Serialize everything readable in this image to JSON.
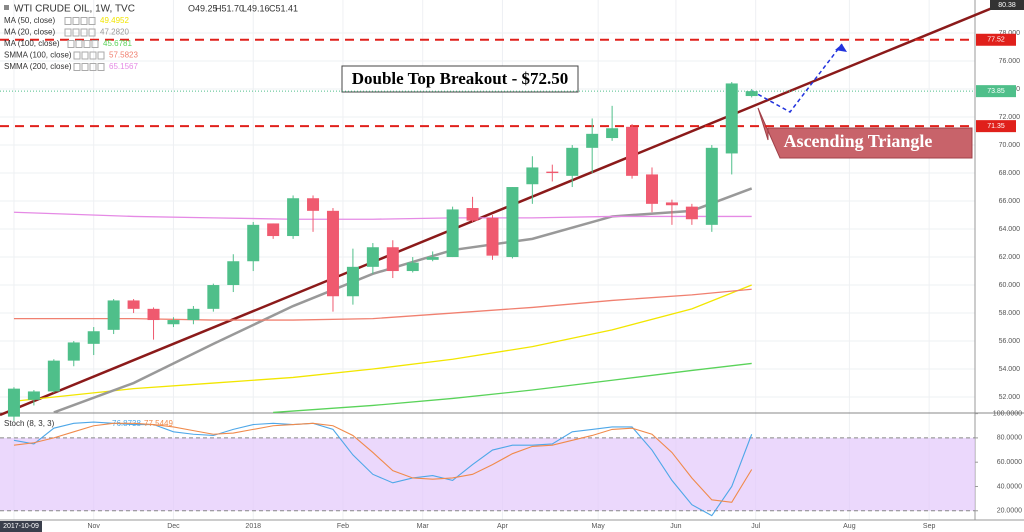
{
  "chart_data": {
    "type": "candlestick",
    "title": "WTI CRUDE OIL, 1W, TVC",
    "header_values": [
      {
        "value": 49.25,
        "label": "O49.25"
      },
      {
        "value": 51.7,
        "label": "H51.70"
      },
      {
        "value": 49.16,
        "label": "L49.16"
      },
      {
        "value": 51.41,
        "label": "C51.41"
      }
    ],
    "x": [
      0,
      1,
      2,
      3,
      4,
      5,
      6,
      7,
      8,
      9,
      10,
      11,
      12,
      13,
      14,
      15,
      16,
      17,
      18,
      19,
      20,
      21,
      22,
      23,
      24,
      25,
      26,
      27,
      28,
      29,
      30,
      31,
      32,
      33,
      34,
      35,
      36,
      37
    ],
    "open": [
      50.6,
      51.8,
      52.4,
      54.6,
      55.8,
      56.8,
      58.9,
      58.3,
      57.2,
      57.5,
      58.3,
      60.0,
      61.7,
      64.4,
      63.5,
      66.2,
      65.3,
      59.2,
      61.3,
      62.7,
      61.0,
      61.8,
      62.0,
      65.5,
      64.8,
      62.0,
      67.2,
      68.1,
      67.8,
      69.8,
      70.5,
      71.3,
      67.9,
      65.9,
      65.6,
      64.3,
      69.4,
      73.5
    ],
    "high": [
      52.7,
      52.5,
      54.7,
      56.0,
      57.0,
      59.0,
      59.0,
      58.4,
      57.7,
      58.5,
      60.1,
      62.2,
      64.5,
      64.4,
      66.4,
      66.4,
      65.5,
      62.6,
      63.0,
      63.2,
      62.0,
      62.4,
      65.6,
      66.3,
      65.0,
      67.0,
      69.2,
      68.6,
      70.0,
      71.9,
      72.8,
      71.5,
      68.4,
      66.1,
      65.8,
      70.0,
      74.5,
      74.0
    ],
    "low": [
      50.3,
      51.4,
      52.3,
      54.2,
      55.0,
      56.5,
      58.0,
      56.1,
      57.0,
      57.2,
      58.1,
      59.5,
      61.0,
      63.3,
      63.3,
      63.8,
      58.1,
      58.6,
      60.8,
      60.5,
      60.9,
      61.7,
      62.0,
      64.5,
      61.8,
      61.9,
      65.8,
      67.4,
      67.0,
      68.0,
      70.3,
      67.6,
      65.2,
      64.3,
      64.3,
      63.8,
      67.9,
      73.4
    ],
    "close": [
      52.6,
      52.4,
      54.6,
      55.9,
      56.7,
      58.9,
      58.3,
      57.5,
      57.5,
      58.3,
      60.0,
      61.7,
      64.3,
      63.5,
      66.2,
      65.3,
      59.2,
      61.3,
      62.7,
      61.0,
      61.6,
      62.0,
      65.4,
      64.6,
      62.1,
      67.0,
      68.4,
      68.0,
      69.8,
      70.8,
      71.2,
      67.8,
      65.8,
      65.7,
      64.7,
      69.8,
      74.4,
      73.85
    ],
    "up_color": "#4fbf8a",
    "down_color": "#ef5a6f",
    "xlim": [
      -0.7,
      48.2
    ],
    "xticks": [
      {
        "value": 0,
        "label": "2017-10-09"
      },
      {
        "value": 4,
        "label": "Nov"
      },
      {
        "value": 8,
        "label": "Dec"
      },
      {
        "value": 12,
        "label": "2018"
      },
      {
        "value": 16.5,
        "label": "Feb"
      },
      {
        "value": 20.5,
        "label": "Mar"
      },
      {
        "value": 24.5,
        "label": "Apr"
      },
      {
        "value": 29.3,
        "label": "May"
      },
      {
        "value": 33.2,
        "label": "Jun"
      },
      {
        "value": 37.2,
        "label": "Jul"
      },
      {
        "value": 41.9,
        "label": "Aug"
      },
      {
        "value": 45.9,
        "label": "Sep"
      }
    ],
    "ylim": [
      50.86,
      80.36
    ],
    "yticks": [
      {
        "value": 52,
        "label": "52.000"
      },
      {
        "value": 54,
        "label": "54.000"
      },
      {
        "value": 56,
        "label": "56.000"
      },
      {
        "value": 58,
        "label": "58.000"
      },
      {
        "value": 60,
        "label": "60.000"
      },
      {
        "value": 62,
        "label": "62.000"
      },
      {
        "value": 64,
        "label": "64.000"
      },
      {
        "value": 66,
        "label": "66.000"
      },
      {
        "value": 68,
        "label": "68.000"
      },
      {
        "value": 70,
        "label": "70.000"
      },
      {
        "value": 72,
        "label": "72.000"
      },
      {
        "value": 74,
        "label": "74.000"
      },
      {
        "value": 76,
        "label": "76.000"
      },
      {
        "value": 78,
        "label": "78.000"
      }
    ],
    "top_price": 80.38,
    "last_price": 73.85,
    "levels": [
      {
        "value": 77.52,
        "color": "#e0201b"
      },
      {
        "value": 71.35,
        "color": "#e0201b"
      }
    ],
    "indicators": [
      {
        "name": "MA (50, close)",
        "value": 49.4952,
        "color": "#f2e600",
        "x": [
          0,
          6,
          10,
          14,
          18,
          22,
          26,
          30,
          34,
          37
        ],
        "values": [
          51.7,
          52.6,
          53.0,
          53.4,
          54.0,
          54.7,
          55.6,
          56.8,
          58.3,
          60.0
        ]
      },
      {
        "name": "MA (20, close)",
        "value": {
          "value": 47.282,
          "label": "47.2820"
        },
        "color": "#999999",
        "x": [
          2,
          6,
          10,
          14,
          18,
          22,
          26,
          30,
          34,
          37
        ],
        "values": [
          50.9,
          53.0,
          55.8,
          58.5,
          60.8,
          62.5,
          63.3,
          64.9,
          65.3,
          66.9
        ]
      },
      {
        "name": "MA (100, close)",
        "value": 45.6781,
        "color": "#5ad35a",
        "x": [
          13,
          18,
          22,
          26,
          30,
          34,
          37
        ],
        "values": [
          50.9,
          51.4,
          51.9,
          52.5,
          53.2,
          53.9,
          54.4
        ]
      },
      {
        "name": "SMMA (100, close)",
        "value": 57.5823,
        "color": "#f08070",
        "x": [
          0,
          6,
          10,
          14,
          18,
          22,
          26,
          30,
          34,
          37
        ],
        "values": [
          57.6,
          57.6,
          57.5,
          57.5,
          57.6,
          58.0,
          58.4,
          58.9,
          59.3,
          59.7
        ]
      },
      {
        "name": "SMMA (200, close)",
        "value": 65.1567,
        "color": "#e58ae5",
        "x": [
          0,
          6,
          10,
          14,
          18,
          22,
          26,
          30,
          34,
          37
        ],
        "values": [
          65.2,
          64.9,
          64.8,
          64.7,
          64.7,
          64.8,
          64.8,
          64.9,
          64.9,
          64.9
        ]
      }
    ],
    "annotations": [
      "Double Top Breakout - $72.50",
      "Ascending Triangle"
    ],
    "stochastic": {
      "name": "Stoch (8, 3, 3)",
      "ylim": [
        12.4,
        100.5
      ],
      "yticks": [
        {
          "value": 20,
          "label": "20.0000"
        },
        {
          "value": 40,
          "label": "40.0000"
        },
        {
          "value": 60,
          "label": "60.0000"
        },
        {
          "value": 80,
          "label": "80.0000"
        },
        {
          "value": 100,
          "label": "100.0000"
        }
      ],
      "band": [
        20,
        80
      ],
      "band_color": "#e2c8fb",
      "series": [
        {
          "color": "#4ea7e8",
          "legend_value": 76.8738,
          "values": [
            78,
            75,
            88,
            92,
            93,
            92,
            91,
            91,
            85,
            83,
            82,
            87,
            91,
            92,
            91,
            92,
            87,
            66,
            50,
            43,
            47,
            49,
            45,
            58,
            70,
            74,
            74,
            75,
            85,
            87,
            89,
            89,
            70,
            45,
            25,
            16,
            40,
            83
          ]
        },
        {
          "color": "#f08a4b",
          "legend_value": 77.5449,
          "values": [
            74,
            76,
            80,
            85,
            90,
            92,
            92,
            91,
            89,
            86,
            83,
            84,
            87,
            90,
            91,
            92,
            90,
            82,
            68,
            53,
            47,
            46,
            47,
            50,
            58,
            67,
            73,
            74,
            78,
            82,
            87,
            88,
            83,
            68,
            47,
            29,
            27,
            54
          ]
        }
      ]
    }
  }
}
